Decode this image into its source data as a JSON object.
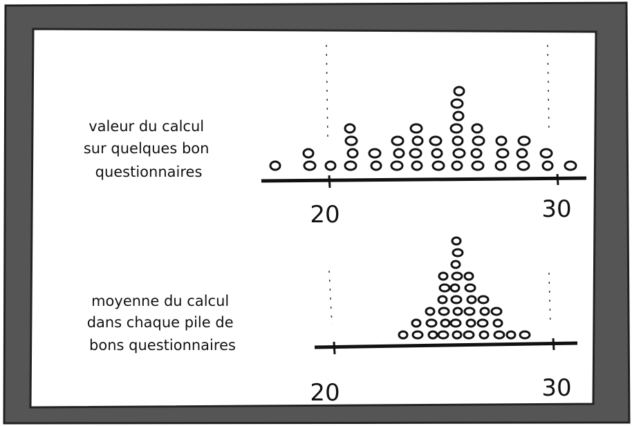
{
  "panels": [
    {
      "label_lines": [
        "valeur du calcul",
        "sur quelques bon",
        "questionnaires"
      ],
      "ticks": [
        "20",
        "30"
      ]
    },
    {
      "label_lines": [
        "moyenne du calcul",
        "dans chaque pile de",
        "bons questionnaires"
      ],
      "ticks": [
        "20",
        "30"
      ]
    }
  ]
}
